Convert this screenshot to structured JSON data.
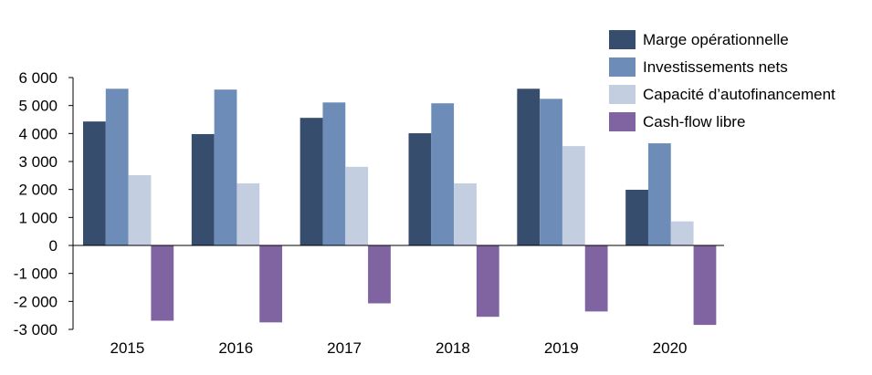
{
  "chart_data": {
    "type": "bar",
    "title": "",
    "xlabel": "",
    "ylabel": "",
    "categories": [
      "2015",
      "2016",
      "2017",
      "2018",
      "2019",
      "2020"
    ],
    "ylim": [
      -3000,
      6000
    ],
    "yticks": [
      6000,
      5000,
      4000,
      3000,
      2000,
      1000,
      0,
      -1000,
      -2000,
      -3000
    ],
    "ytick_labels": [
      "6 000",
      "5 000",
      "4 000",
      "3 000",
      "2 000",
      "1 000",
      "0",
      "-1 000",
      "-2 000",
      "-3 000"
    ],
    "legend_position": "top-right",
    "series": [
      {
        "name": "Marge opérationnelle",
        "color": "#374D6E",
        "values": [
          4430,
          3980,
          4560,
          4010,
          5600,
          1990
        ]
      },
      {
        "name": "Investissements nets",
        "color": "#6D8DB8",
        "values": [
          5600,
          5570,
          5110,
          5080,
          5240,
          3650
        ]
      },
      {
        "name": "Capacité d’autofinancement",
        "color": "#C3CEE0",
        "values": [
          2510,
          2220,
          2810,
          2220,
          3550,
          860
        ]
      },
      {
        "name": "Cash-flow libre",
        "color": "#8064A2",
        "values": [
          -2690,
          -2750,
          -2070,
          -2550,
          -2360,
          -2840
        ]
      }
    ]
  }
}
